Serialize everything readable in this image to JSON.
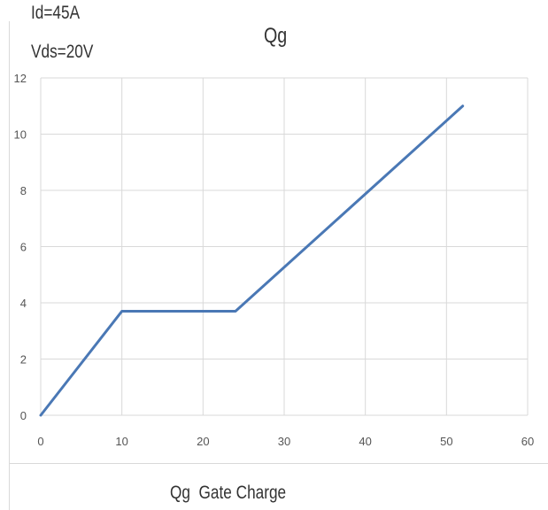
{
  "annotations": [
    "Id=45A",
    "Vds=20V"
  ],
  "chart_data": {
    "type": "line",
    "title": "Qg",
    "xlabel": "Qg  Gate Charge",
    "ylabel": "",
    "xlim": [
      0,
      60
    ],
    "ylim": [
      0,
      12
    ],
    "xticks": [
      0,
      10,
      20,
      30,
      40,
      50,
      60
    ],
    "yticks": [
      0,
      2,
      4,
      6,
      8,
      10,
      12
    ],
    "grid": true,
    "series": [
      {
        "color": "#4a78b5",
        "x": [
          0,
          10,
          24,
          52
        ],
        "y": [
          0,
          3.7,
          3.7,
          11
        ]
      }
    ]
  }
}
